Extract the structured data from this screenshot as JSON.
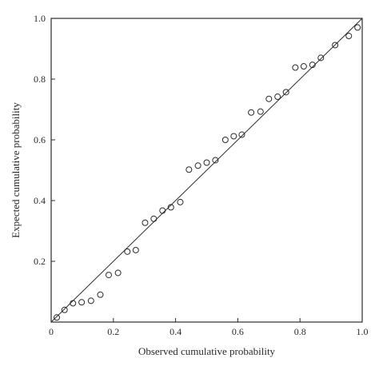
{
  "chart_data": {
    "type": "scatter",
    "title": "",
    "xlabel": "Observed cumulative probability",
    "ylabel": "Expected cumulative probability",
    "xlim": [
      0.0,
      1.0
    ],
    "ylim": [
      0.0,
      1.0
    ],
    "xticks": [
      "0",
      "0.2",
      "0.4",
      "0.6",
      "0.8",
      "1.0"
    ],
    "yticks": [
      "0.2",
      "0.4",
      "0.6",
      "0.8",
      "1.0"
    ],
    "grid": false,
    "legend": "none",
    "reference_line": {
      "from": [
        0,
        0
      ],
      "to": [
        1,
        1
      ]
    },
    "series": [
      {
        "points": [
          [
            0.018,
            0.015
          ],
          [
            0.043,
            0.04
          ],
          [
            0.07,
            0.062
          ],
          [
            0.098,
            0.065
          ],
          [
            0.128,
            0.07
          ],
          [
            0.158,
            0.09
          ],
          [
            0.185,
            0.155
          ],
          [
            0.215,
            0.162
          ],
          [
            0.245,
            0.232
          ],
          [
            0.272,
            0.237
          ],
          [
            0.302,
            0.327
          ],
          [
            0.33,
            0.34
          ],
          [
            0.358,
            0.367
          ],
          [
            0.385,
            0.378
          ],
          [
            0.415,
            0.395
          ],
          [
            0.443,
            0.502
          ],
          [
            0.472,
            0.515
          ],
          [
            0.5,
            0.525
          ],
          [
            0.528,
            0.533
          ],
          [
            0.56,
            0.6
          ],
          [
            0.587,
            0.612
          ],
          [
            0.613,
            0.617
          ],
          [
            0.643,
            0.69
          ],
          [
            0.673,
            0.693
          ],
          [
            0.7,
            0.735
          ],
          [
            0.728,
            0.742
          ],
          [
            0.755,
            0.757
          ],
          [
            0.785,
            0.838
          ],
          [
            0.812,
            0.842
          ],
          [
            0.84,
            0.847
          ],
          [
            0.867,
            0.87
          ],
          [
            0.913,
            0.912
          ],
          [
            0.957,
            0.942
          ],
          [
            0.985,
            0.97
          ]
        ]
      }
    ]
  }
}
